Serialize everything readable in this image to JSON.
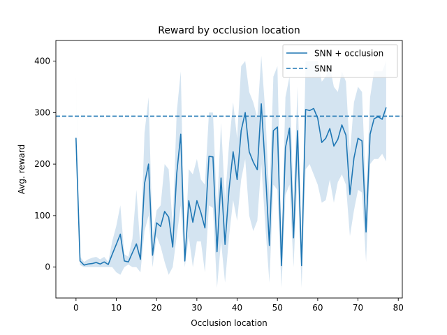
{
  "chart_data": {
    "type": "line",
    "title": "Reward by occlusion location",
    "xlabel": "Occlusion location",
    "ylabel": "Avg. reward",
    "xlim": [
      -5,
      81
    ],
    "ylim": [
      -60,
      440
    ],
    "x_ticks": [
      0,
      10,
      20,
      30,
      40,
      50,
      60,
      70,
      80
    ],
    "y_ticks": [
      0,
      100,
      200,
      300,
      400
    ],
    "grid": false,
    "legend_position": "top-right",
    "colors": {
      "line": "#1f77b4",
      "band": "#a9c9e4",
      "axes": "#000000"
    },
    "series": [
      {
        "name": "SNN + occlusion",
        "style": "solid",
        "x": [
          0,
          1,
          2,
          3,
          4,
          5,
          6,
          7,
          8,
          9,
          10,
          11,
          12,
          13,
          14,
          15,
          16,
          17,
          18,
          19,
          20,
          21,
          22,
          23,
          24,
          25,
          26,
          27,
          28,
          29,
          30,
          31,
          32,
          33,
          34,
          35,
          36,
          37,
          38,
          39,
          40,
          41,
          42,
          43,
          44,
          45,
          46,
          47,
          48,
          49,
          50,
          51,
          52,
          53,
          54,
          55,
          56,
          57,
          58,
          59,
          60,
          61,
          62,
          63,
          64,
          65,
          66,
          67,
          68,
          69,
          70,
          71,
          72,
          73,
          74,
          75,
          76,
          77
        ],
        "values": [
          251,
          12,
          4,
          6,
          7,
          9,
          6,
          10,
          5,
          25,
          44,
          64,
          12,
          10,
          28,
          45,
          15,
          162,
          200,
          23,
          86,
          79,
          108,
          97,
          39,
          181,
          258,
          12,
          129,
          87,
          129,
          106,
          76,
          215,
          214,
          30,
          173,
          44,
          152,
          224,
          170,
          265,
          300,
          224,
          204,
          189,
          317,
          190,
          42,
          265,
          272,
          3,
          232,
          270,
          57,
          265,
          3,
          306,
          304,
          308,
          289,
          242,
          250,
          269,
          235,
          248,
          276,
          256,
          141,
          212,
          250,
          245,
          68,
          258,
          288,
          292,
          287,
          310
        ],
        "lower": [
          370,
          4,
          0,
          0,
          0,
          0,
          0,
          0,
          0,
          0,
          -10,
          -15,
          0,
          5,
          0,
          0,
          -10,
          70,
          100,
          0,
          60,
          40,
          10,
          -15,
          0,
          60,
          120,
          0,
          60,
          0,
          50,
          50,
          -10,
          120,
          115,
          -40,
          50,
          -30,
          60,
          130,
          90,
          170,
          210,
          100,
          70,
          90,
          200,
          80,
          -30,
          160,
          150,
          -40,
          140,
          160,
          0,
          180,
          -40,
          190,
          200,
          180,
          160,
          125,
          130,
          170,
          125,
          165,
          180,
          160,
          60,
          110,
          150,
          145,
          10,
          200,
          210,
          210,
          220,
          205
        ],
        "upper": [
          370,
          20,
          10,
          15,
          18,
          20,
          15,
          20,
          10,
          50,
          80,
          120,
          25,
          20,
          55,
          150,
          35,
          260,
          330,
          60,
          110,
          120,
          200,
          190,
          80,
          300,
          380,
          25,
          190,
          180,
          210,
          170,
          160,
          300,
          300,
          110,
          280,
          130,
          240,
          320,
          250,
          390,
          400,
          340,
          320,
          290,
          410,
          300,
          130,
          370,
          390,
          45,
          330,
          370,
          130,
          350,
          45,
          400,
          400,
          400,
          400,
          360,
          370,
          390,
          350,
          340,
          380,
          360,
          220,
          320,
          350,
          340,
          140,
          330,
          380,
          380,
          380,
          400
        ]
      },
      {
        "name": "SNN",
        "style": "dashed",
        "value": 293
      }
    ]
  }
}
